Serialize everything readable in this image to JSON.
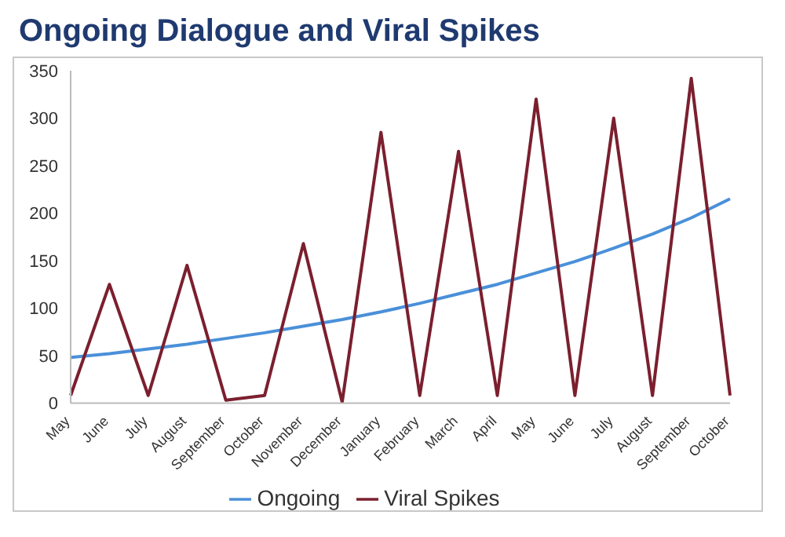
{
  "chart_data": {
    "type": "line",
    "title": "Ongoing Dialogue and Viral Spikes",
    "categories": [
      "May",
      "June",
      "July",
      "August",
      "September",
      "October",
      "November",
      "December",
      "January",
      "February",
      "March",
      "April",
      "May",
      "June",
      "July",
      "August",
      "September",
      "October"
    ],
    "series": [
      {
        "name": "Ongoing",
        "color": "#4a90d9",
        "values": [
          48,
          52,
          57,
          62,
          68,
          74,
          81,
          88,
          96,
          105,
          115,
          125,
          137,
          149,
          163,
          178,
          195,
          215
        ]
      },
      {
        "name": "Viral Spikes",
        "color": "#7b1f2e",
        "values": [
          8,
          125,
          8,
          145,
          3,
          8,
          168,
          1,
          285,
          8,
          265,
          8,
          320,
          8,
          300,
          8,
          342,
          8
        ]
      }
    ],
    "ylim": [
      0,
      350
    ],
    "yticks": [
      0,
      50,
      100,
      150,
      200,
      250,
      300,
      350
    ],
    "grid": false,
    "legend": "bottom",
    "marker": "none",
    "line_style": "solid"
  }
}
